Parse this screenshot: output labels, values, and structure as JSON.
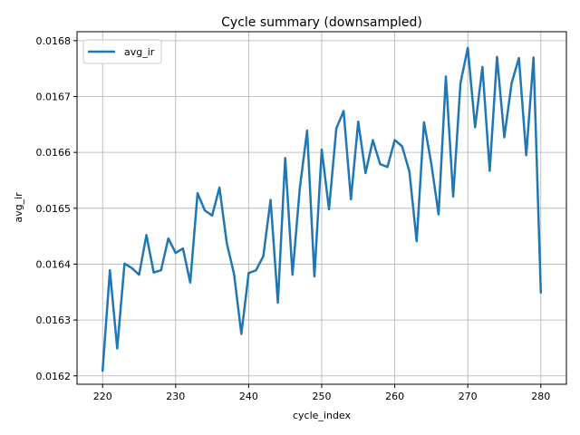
{
  "chart_data": {
    "type": "line",
    "title": "Cycle summary (downsampled)",
    "xlabel": "cycle_index",
    "ylabel": "avg_ir",
    "xlim": [
      216.5,
      283.5
    ],
    "ylim": [
      0.016185,
      0.016816
    ],
    "xticks": [
      220,
      230,
      240,
      250,
      260,
      270,
      280
    ],
    "yticks": [
      0.0162,
      0.0163,
      0.0164,
      0.0165,
      0.0166,
      0.0167,
      0.0168
    ],
    "xtick_labels": [
      "220",
      "230",
      "240",
      "250",
      "260",
      "270",
      "280"
    ],
    "ytick_labels": [
      "0.0162",
      "0.0163",
      "0.0164",
      "0.0165",
      "0.0166",
      "0.0167",
      "0.0168"
    ],
    "grid": true,
    "legend_position": "top-left",
    "series": [
      {
        "name": "avg_ir",
        "color": "#1f77b4",
        "x": [
          220,
          221,
          222,
          223,
          224,
          225,
          226,
          227,
          228,
          229,
          230,
          231,
          232,
          233,
          234,
          235,
          236,
          237,
          238,
          239,
          240,
          241,
          242,
          243,
          244,
          245,
          246,
          247,
          248,
          249,
          250,
          251,
          252,
          253,
          254,
          255,
          256,
          257,
          258,
          259,
          260,
          261,
          262,
          263,
          264,
          265,
          266,
          267,
          268,
          269,
          270,
          271,
          272,
          273,
          274,
          275,
          276,
          277,
          278,
          279,
          280
        ],
        "y": [
          0.016209,
          0.016389,
          0.016249,
          0.016401,
          0.016393,
          0.016381,
          0.016452,
          0.016385,
          0.016389,
          0.016446,
          0.01642,
          0.016428,
          0.016367,
          0.016527,
          0.016496,
          0.016487,
          0.016537,
          0.016438,
          0.016382,
          0.016275,
          0.016384,
          0.016389,
          0.016414,
          0.016515,
          0.016331,
          0.01659,
          0.016381,
          0.016536,
          0.016639,
          0.016378,
          0.016605,
          0.016498,
          0.016643,
          0.016674,
          0.016516,
          0.016655,
          0.016563,
          0.016622,
          0.016579,
          0.016574,
          0.016622,
          0.016611,
          0.016566,
          0.016441,
          0.016654,
          0.01658,
          0.016489,
          0.016736,
          0.016521,
          0.016724,
          0.016787,
          0.016645,
          0.016753,
          0.016567,
          0.016771,
          0.016627,
          0.016724,
          0.016769,
          0.016595,
          0.01677,
          0.016349
        ]
      }
    ]
  }
}
